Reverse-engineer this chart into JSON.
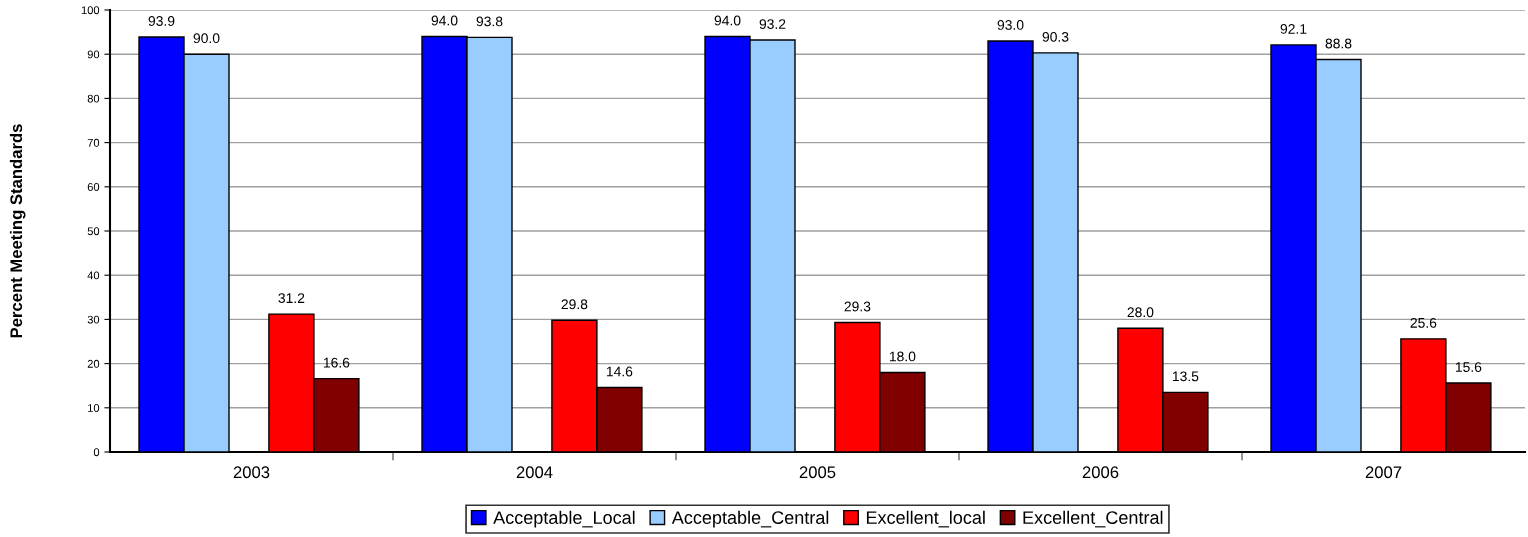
{
  "chart_data": {
    "type": "bar",
    "ylabel": "Percent Meeting Standards",
    "categories": [
      "2003",
      "2004",
      "2005",
      "2006",
      "2007"
    ],
    "series": [
      {
        "name": "Acceptable_Local",
        "color": "#0000ff",
        "values": [
          93.9,
          94.0,
          94.0,
          93.0,
          92.1
        ],
        "value_labels": [
          "93.9",
          "94.0",
          "94.0",
          "93.0",
          "92.1"
        ]
      },
      {
        "name": "Acceptable_Central",
        "color": "#99ccff",
        "values": [
          90.0,
          93.8,
          93.2,
          90.3,
          88.8
        ],
        "value_labels": [
          "90.0",
          "93.8",
          "93.2",
          "90.3",
          "88.8"
        ]
      },
      {
        "name": "Excellent_local",
        "color": "#ff0000",
        "values": [
          31.2,
          29.8,
          29.3,
          28.0,
          25.6
        ],
        "value_labels": [
          "31.2",
          "29.8",
          "29.3",
          "28.0",
          "25.6"
        ]
      },
      {
        "name": "Excellent_Central",
        "color": "#800000",
        "values": [
          16.6,
          14.6,
          18.0,
          13.5,
          15.6
        ],
        "value_labels": [
          "16.6",
          "14.6",
          "18.0",
          "13.5",
          "15.6"
        ]
      }
    ],
    "ylim": [
      0,
      100
    ],
    "yticks": [
      0,
      10,
      20,
      30,
      40,
      50,
      60,
      70,
      80,
      90,
      100
    ],
    "grid": "y",
    "legend": "bottom"
  }
}
